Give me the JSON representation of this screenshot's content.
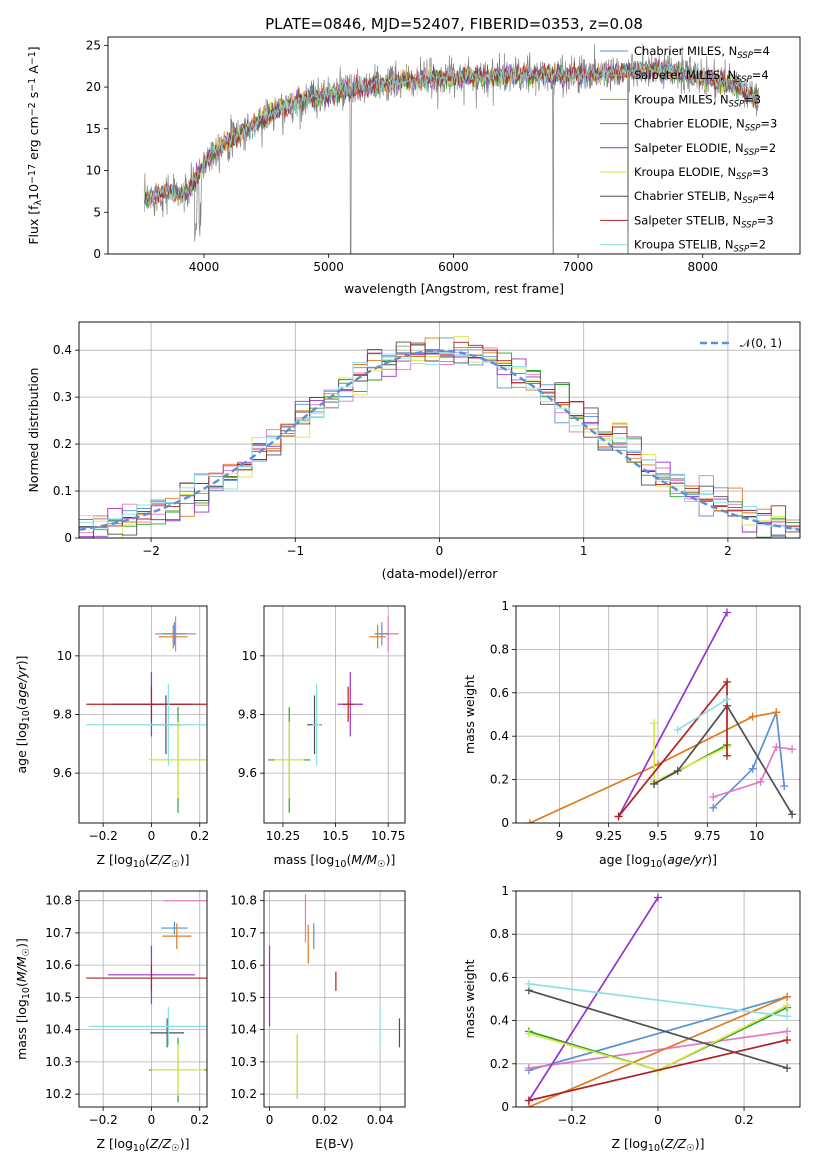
{
  "chart_data": [
    {
      "id": "spectrum",
      "type": "line",
      "title": "PLATE=0846, MJD=52407, FIBERID=0353, z=0.08",
      "xlabel": "wavelength [Angstrom, rest frame]",
      "ylabel": "Flux [fλ10⁻¹⁷ erg cm⁻² s⁻¹ A⁻¹]",
      "xlim": [
        3230,
        8780
      ],
      "ylim": [
        0,
        26
      ],
      "xticks": [
        4000,
        5000,
        6000,
        7000,
        8000
      ],
      "yticks": [
        0,
        5,
        10,
        15,
        20,
        25
      ],
      "grid": false,
      "legend_position": "upper-right",
      "continuum": [
        [
          3520,
          6.5
        ],
        [
          3700,
          7.5
        ],
        [
          3850,
          7.0
        ],
        [
          3950,
          9.5
        ],
        [
          4050,
          12.0
        ],
        [
          4200,
          13.5
        ],
        [
          4350,
          15.0
        ],
        [
          4500,
          16.5
        ],
        [
          4650,
          17.5
        ],
        [
          4800,
          18.5
        ],
        [
          4950,
          19.0
        ],
        [
          5100,
          19.5
        ],
        [
          5300,
          20.0
        ],
        [
          5500,
          20.5
        ],
        [
          5800,
          21.0
        ],
        [
          6100,
          21.2
        ],
        [
          6400,
          21.3
        ],
        [
          6700,
          21.4
        ],
        [
          7000,
          21.5
        ],
        [
          7300,
          21.8
        ],
        [
          7600,
          22.0
        ],
        [
          7900,
          21.5
        ],
        [
          8200,
          20.5
        ],
        [
          8450,
          18.5
        ]
      ],
      "series": [
        {
          "name": "Chabrier MILES, N_SSP=4",
          "name_plain": "Chabrier MILES, N",
          "name_sub": "SSP",
          "name_tail": "=4",
          "color": "#5b8fd6"
        },
        {
          "name": "Salpeter MILES, N_SSP=4",
          "name_plain": "Salpeter MILES, N",
          "name_sub": "SSP",
          "name_tail": "=4",
          "color": "#e377c2"
        },
        {
          "name": "Kroupa MILES, N_SSP=3",
          "name_plain": "Kroupa MILES, N",
          "name_sub": "SSP",
          "name_tail": "=3",
          "color": "#e07b20"
        },
        {
          "name": "Chabrier ELODIE, N_SSP=3",
          "name_plain": "Chabrier ELODIE, N",
          "name_sub": "SSP",
          "name_tail": "=3",
          "color": "#2ca02c"
        },
        {
          "name": "Salpeter ELODIE, N_SSP=2",
          "name_plain": "Salpeter ELODIE, N",
          "name_sub": "SSP",
          "name_tail": "=2",
          "color": "#9932cc"
        },
        {
          "name": "Kroupa ELODIE, N_SSP=3",
          "name_plain": "Kroupa ELODIE, N",
          "name_sub": "SSP",
          "name_tail": "=3",
          "color": "#d9e84a"
        },
        {
          "name": "Chabrier STELIB, N_SSP=4",
          "name_plain": "Chabrier STELIB, N",
          "name_sub": "SSP",
          "name_tail": "=4",
          "color": "#505050"
        },
        {
          "name": "Salpeter STELIB, N_SSP=3",
          "name_plain": "Salpeter STELIB, N",
          "name_sub": "SSP",
          "name_tail": "=3",
          "color": "#b22222"
        },
        {
          "name": "Kroupa STELIB, N_SSP=2",
          "name_plain": "Kroupa STELIB, N",
          "name_sub": "SSP",
          "name_tail": "=2",
          "color": "#8ee0e8"
        }
      ]
    },
    {
      "id": "residuals",
      "type": "histogram",
      "xlabel": "(data-model)/error",
      "ylabel": "Normed distribution",
      "xlim": [
        -2.5,
        2.5
      ],
      "ylim": [
        0,
        0.46
      ],
      "xticks": [
        -2,
        -1,
        0,
        1,
        2
      ],
      "yticks": [
        0.0,
        0.1,
        0.2,
        0.3,
        0.4
      ],
      "grid": true,
      "legend_label": "𝒩(0, 1)",
      "legend_position": "upper-right",
      "bin_width": 0.1,
      "reference_curve": "normal(0,1)"
    },
    {
      "id": "age-vs-Z",
      "type": "scatter",
      "xlabel": "Z [log10(Z/Z☉)]",
      "ylabel": "age [log10(age/yr)]",
      "xlim": [
        -0.3,
        0.23
      ],
      "ylim": [
        9.43,
        10.17
      ],
      "xticks": [
        -0.2,
        0.0,
        0.2
      ],
      "yticks": [
        9.6,
        9.8,
        10.0
      ],
      "grid": true,
      "points": [
        {
          "x": 0.1,
          "y": 10.075,
          "xerr": 0.085,
          "yerr": 0.06,
          "color": "#e377c2"
        },
        {
          "x": 0.095,
          "y": 10.075,
          "xerr": 0.05,
          "yerr": 0.04,
          "color": "#5b8fd6"
        },
        {
          "x": 0.09,
          "y": 10.065,
          "xerr": 0.06,
          "yerr": 0.04,
          "color": "#e07b20"
        },
        {
          "x": 0.0,
          "y": 9.835,
          "xerr": 0.17,
          "yerr": 0.11,
          "color": "#9932cc"
        },
        {
          "x": 0.0,
          "y": 9.835,
          "xerr": 0.27,
          "yerr": 0.06,
          "color": "#b22222"
        },
        {
          "x": 0.06,
          "y": 9.765,
          "xerr": 0.065,
          "yerr": 0.1,
          "color": "#505050"
        },
        {
          "x": 0.07,
          "y": 9.765,
          "xerr": 0.34,
          "yerr": 0.14,
          "color": "#8ee0e8"
        },
        {
          "x": 0.11,
          "y": 9.645,
          "xerr": 0.12,
          "yerr": 0.18,
          "color": "#2ca02c"
        },
        {
          "x": 0.11,
          "y": 9.645,
          "xerr": 0.12,
          "yerr": 0.13,
          "color": "#d9e84a"
        }
      ]
    },
    {
      "id": "age-vs-mass",
      "type": "scatter",
      "xlabel": "mass [log10(M/M☉)]",
      "ylabel": "",
      "xlim": [
        10.16,
        10.83
      ],
      "ylim": [
        9.43,
        10.17
      ],
      "xticks": [
        10.25,
        10.5,
        10.75
      ],
      "yticks": [
        9.6,
        9.8,
        10.0
      ],
      "grid": true,
      "points": [
        {
          "x": 10.75,
          "y": 10.075,
          "xerr": 0.05,
          "yerr": 0.06,
          "color": "#e377c2"
        },
        {
          "x": 10.72,
          "y": 10.075,
          "xerr": 0.035,
          "yerr": 0.04,
          "color": "#5b8fd6"
        },
        {
          "x": 10.7,
          "y": 10.065,
          "xerr": 0.04,
          "yerr": 0.04,
          "color": "#e07b20"
        },
        {
          "x": 10.57,
          "y": 9.835,
          "xerr": 0.06,
          "yerr": 0.11,
          "color": "#9932cc"
        },
        {
          "x": 10.56,
          "y": 9.835,
          "xerr": 0.025,
          "yerr": 0.06,
          "color": "#b22222"
        },
        {
          "x": 10.4,
          "y": 9.765,
          "xerr": 0.035,
          "yerr": 0.1,
          "color": "#505050"
        },
        {
          "x": 10.41,
          "y": 9.765,
          "xerr": 0.02,
          "yerr": 0.14,
          "color": "#8ee0e8"
        },
        {
          "x": 10.28,
          "y": 9.645,
          "xerr": 0.1,
          "yerr": 0.18,
          "color": "#2ca02c"
        },
        {
          "x": 10.28,
          "y": 9.645,
          "xerr": 0.07,
          "yerr": 0.13,
          "color": "#d9e84a"
        }
      ]
    },
    {
      "id": "weight-vs-age",
      "type": "line",
      "xlabel": "age [log10(age/yr)]",
      "ylabel": "mass weight",
      "xlim": [
        8.78,
        10.22
      ],
      "ylim": [
        0,
        1.0
      ],
      "xticks": [
        9.0,
        9.25,
        9.5,
        9.75,
        10.0
      ],
      "yticks": [
        0.0,
        0.2,
        0.4,
        0.6,
        0.8,
        1.0
      ],
      "grid": true,
      "series": [
        {
          "color": "#5b8fd6",
          "points": [
            [
              9.78,
              0.07
            ],
            [
              9.98,
              0.25
            ],
            [
              10.1,
              0.51
            ],
            [
              10.14,
              0.17
            ]
          ]
        },
        {
          "color": "#e377c2",
          "points": [
            [
              9.78,
              0.12
            ],
            [
              10.02,
              0.19
            ],
            [
              10.1,
              0.35
            ],
            [
              10.18,
              0.34
            ]
          ]
        },
        {
          "color": "#e07b20",
          "points": [
            [
              8.85,
              0.0
            ],
            [
              9.5,
              0.27
            ],
            [
              9.98,
              0.49
            ],
            [
              10.1,
              0.51
            ]
          ]
        },
        {
          "color": "#2ca02c",
          "points": [
            [
              9.48,
              0.18
            ],
            [
              9.85,
              0.36
            ]
          ]
        },
        {
          "color": "#9932cc",
          "points": [
            [
              9.3,
              0.03
            ],
            [
              9.85,
              0.97
            ]
          ]
        },
        {
          "color": "#d9e84a",
          "points": [
            [
              9.48,
              0.46
            ],
            [
              9.48,
              0.19
            ],
            [
              9.85,
              0.35
            ]
          ]
        },
        {
          "color": "#505050",
          "points": [
            [
              9.48,
              0.18
            ],
            [
              9.6,
              0.24
            ],
            [
              9.85,
              0.54
            ],
            [
              10.18,
              0.04
            ]
          ]
        },
        {
          "color": "#b22222",
          "points": [
            [
              9.3,
              0.03
            ],
            [
              9.85,
              0.65
            ],
            [
              9.85,
              0.31
            ]
          ]
        },
        {
          "color": "#8ee0e8",
          "points": [
            [
              9.6,
              0.43
            ],
            [
              9.85,
              0.57
            ]
          ]
        }
      ]
    },
    {
      "id": "mass-vs-Z",
      "type": "scatter",
      "xlabel": "Z [log10(Z/Z☉)]",
      "ylabel": "mass [log10(M/M☉)]",
      "xlim": [
        -0.3,
        0.23
      ],
      "ylim": [
        10.16,
        10.83
      ],
      "xticks": [
        -0.2,
        0.0,
        0.2
      ],
      "yticks": [
        10.2,
        10.3,
        10.4,
        10.5,
        10.6,
        10.7,
        10.8
      ],
      "grid": true,
      "points": [
        {
          "x": 0.14,
          "y": 10.8,
          "xerr": 0.09,
          "yerr": 0.0,
          "color": "#e377c2"
        },
        {
          "x": 0.095,
          "y": 10.715,
          "xerr": 0.055,
          "yerr": 0.02,
          "color": "#5b8fd6"
        },
        {
          "x": 0.105,
          "y": 10.69,
          "xerr": 0.06,
          "yerr": 0.04,
          "color": "#e07b20"
        },
        {
          "x": 0.0,
          "y": 10.57,
          "xerr": 0.18,
          "yerr": 0.09,
          "color": "#9932cc"
        },
        {
          "x": 0.0,
          "y": 10.56,
          "xerr": 0.27,
          "yerr": 0.04,
          "color": "#b22222"
        },
        {
          "x": 0.065,
          "y": 10.39,
          "xerr": 0.07,
          "yerr": 0.045,
          "color": "#505050"
        },
        {
          "x": 0.07,
          "y": 10.41,
          "xerr": 0.33,
          "yerr": 0.06,
          "color": "#8ee0e8"
        },
        {
          "x": 0.11,
          "y": 10.275,
          "xerr": 0.12,
          "yerr": 0.1,
          "color": "#2ca02c"
        },
        {
          "x": 0.11,
          "y": 10.275,
          "xerr": 0.11,
          "yerr": 0.08,
          "color": "#d9e84a"
        }
      ]
    },
    {
      "id": "mass-vs-ebv",
      "type": "scatter",
      "xlabel": "E(B-V)",
      "ylabel": "",
      "xlim": [
        -0.002,
        0.049
      ],
      "ylim": [
        10.16,
        10.83
      ],
      "xticks": [
        0.0,
        0.02,
        0.04
      ],
      "yticks": [
        10.2,
        10.3,
        10.4,
        10.5,
        10.6,
        10.7,
        10.8
      ],
      "grid": true,
      "points": [
        {
          "x": 0.013,
          "y": 10.745,
          "xerr": 0.0,
          "yerr": 0.075,
          "color": "#e377c2"
        },
        {
          "x": 0.016,
          "y": 10.69,
          "xerr": 0.0,
          "yerr": 0.04,
          "color": "#5b8fd6"
        },
        {
          "x": 0.014,
          "y": 10.665,
          "xerr": 0.0,
          "yerr": 0.06,
          "color": "#e07b20"
        },
        {
          "x": 0.0,
          "y": 10.535,
          "xerr": 0.0,
          "yerr": 0.125,
          "color": "#9932cc"
        },
        {
          "x": 0.024,
          "y": 10.55,
          "xerr": 0.0,
          "yerr": 0.03,
          "color": "#b22222"
        },
        {
          "x": 0.047,
          "y": 10.39,
          "xerr": 0.0,
          "yerr": 0.045,
          "color": "#505050"
        },
        {
          "x": 0.04,
          "y": 10.41,
          "xerr": 0.0,
          "yerr": 0.06,
          "color": "#8ee0e8"
        },
        {
          "x": 0.01,
          "y": 10.285,
          "xerr": 0.0,
          "yerr": 0.1,
          "color": "#2ca02c"
        },
        {
          "x": 0.01,
          "y": 10.285,
          "xerr": 0.0,
          "yerr": 0.1,
          "color": "#d9e84a"
        }
      ]
    },
    {
      "id": "weight-vs-Z",
      "type": "line",
      "xlabel": "Z [log10(Z/Z☉)]",
      "ylabel": "mass weight",
      "xlim": [
        -0.33,
        0.33
      ],
      "ylim": [
        0,
        1.0
      ],
      "xticks": [
        -0.2,
        0.0,
        0.2
      ],
      "yticks": [
        0.0,
        0.2,
        0.4,
        0.6,
        0.8,
        1.0
      ],
      "grid": true,
      "series": [
        {
          "color": "#5b8fd6",
          "points": [
            [
              -0.3,
              0.17
            ],
            [
              0.3,
              0.51
            ]
          ]
        },
        {
          "color": "#e377c2",
          "points": [
            [
              -0.3,
              0.18
            ],
            [
              0.3,
              0.35
            ]
          ]
        },
        {
          "color": "#e07b20",
          "points": [
            [
              -0.3,
              0.0
            ],
            [
              0.3,
              0.51
            ]
          ]
        },
        {
          "color": "#2ca02c",
          "points": [
            [
              -0.3,
              0.35
            ],
            [
              0.0,
              0.17
            ],
            [
              0.3,
              0.46
            ]
          ]
        },
        {
          "color": "#9932cc",
          "points": [
            [
              -0.3,
              0.03
            ],
            [
              0.0,
              0.97
            ]
          ]
        },
        {
          "color": "#d9e84a",
          "points": [
            [
              -0.3,
              0.34
            ],
            [
              0.0,
              0.17
            ],
            [
              0.3,
              0.47
            ]
          ]
        },
        {
          "color": "#505050",
          "points": [
            [
              -0.3,
              0.54
            ],
            [
              0.3,
              0.18
            ]
          ]
        },
        {
          "color": "#b22222",
          "points": [
            [
              -0.3,
              0.03
            ],
            [
              0.3,
              0.31
            ]
          ]
        },
        {
          "color": "#8ee0e8",
          "points": [
            [
              -0.3,
              0.57
            ],
            [
              0.3,
              0.42
            ]
          ]
        }
      ]
    }
  ]
}
